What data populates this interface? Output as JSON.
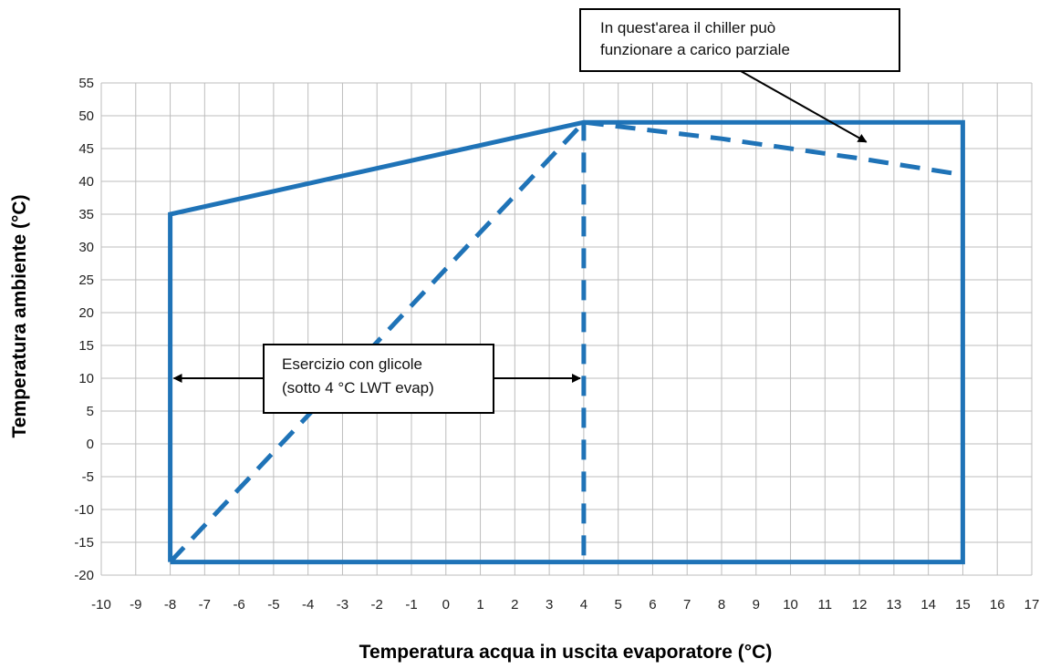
{
  "chart_data": {
    "type": "line",
    "xlabel": "Temperatura acqua in uscita evaporatore (°C)",
    "ylabel": "Temperatura ambiente (°C)",
    "xlim": [
      -10,
      17
    ],
    "ylim": [
      -20,
      55
    ],
    "xticks": [
      -10,
      -9,
      -8,
      -7,
      -6,
      -5,
      -4,
      -3,
      -2,
      -1,
      0,
      1,
      2,
      3,
      4,
      5,
      6,
      7,
      8,
      9,
      10,
      11,
      12,
      13,
      14,
      15,
      16,
      17
    ],
    "yticks": [
      55,
      50,
      45,
      40,
      35,
      30,
      25,
      20,
      15,
      10,
      5,
      0,
      -5,
      -10,
      -15,
      -20
    ],
    "grid": true,
    "line_color": "#1f73b7",
    "series": [
      {
        "style": "solid",
        "x": [
          -8,
          -8,
          4,
          15,
          15,
          -8
        ],
        "y": [
          -18,
          35,
          49,
          49,
          -18,
          -18
        ]
      },
      {
        "style": "dashed",
        "x": [
          -8,
          4
        ],
        "y": [
          -18,
          49
        ]
      },
      {
        "style": "dashed",
        "x": [
          4,
          4
        ],
        "y": [
          -17,
          49
        ]
      },
      {
        "style": "dashed",
        "x": [
          4,
          8,
          12,
          15
        ],
        "y": [
          49,
          46.5,
          43.5,
          41
        ]
      }
    ],
    "annotations": [
      {
        "lines": [
          "In quest'area  il  chiller  può",
          "funzionare a carico parziale"
        ],
        "arrow_to": [
          12.2,
          46
        ]
      },
      {
        "lines": [
          "Esercizio con glicole",
          "(sotto 4 °C LWT evap)"
        ],
        "arrow_left_to": [
          -8,
          10
        ],
        "arrow_right_to": [
          4,
          10
        ]
      }
    ]
  }
}
